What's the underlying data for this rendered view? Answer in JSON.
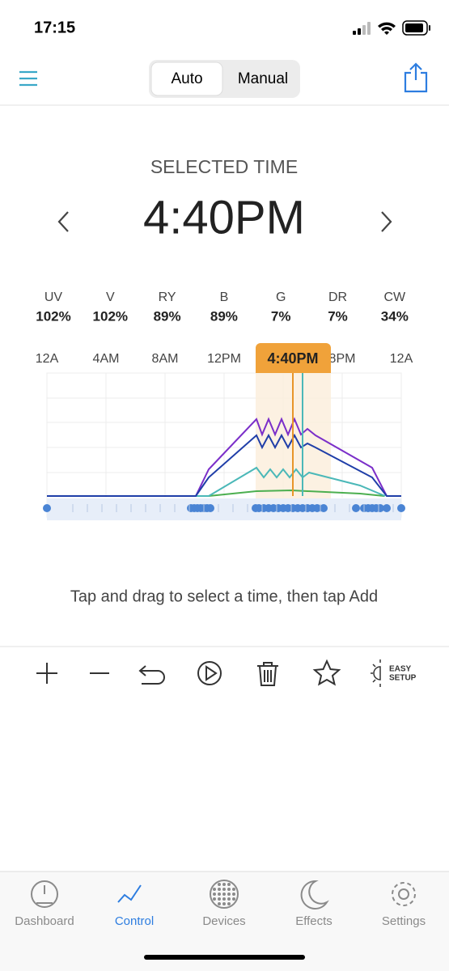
{
  "status_bar": {
    "time": "17:15"
  },
  "header": {
    "tabs": [
      "Auto",
      "Manual"
    ]
  },
  "selected_time": {
    "label": "SELECTED TIME",
    "time": "4:40PM"
  },
  "channels": [
    {
      "name": "UV",
      "value": "102%"
    },
    {
      "name": "V",
      "value": "102%"
    },
    {
      "name": "RY",
      "value": "89%"
    },
    {
      "name": "B",
      "value": "89%"
    },
    {
      "name": "G",
      "value": "7%"
    },
    {
      "name": "DR",
      "value": "7%"
    },
    {
      "name": "CW",
      "value": "34%"
    }
  ],
  "timeline": {
    "labels": [
      "12A",
      "4AM",
      "8AM",
      "12PM",
      "8PM",
      "12A"
    ],
    "selected": "4:40PM"
  },
  "hint": "Tap and drag to select a time, then tap Add",
  "toolbar": {
    "easy_setup": [
      "EASY",
      "SETUP"
    ]
  },
  "tab_bar": [
    "Dashboard",
    "Control",
    "Devices",
    "Effects",
    "Settings"
  ]
}
